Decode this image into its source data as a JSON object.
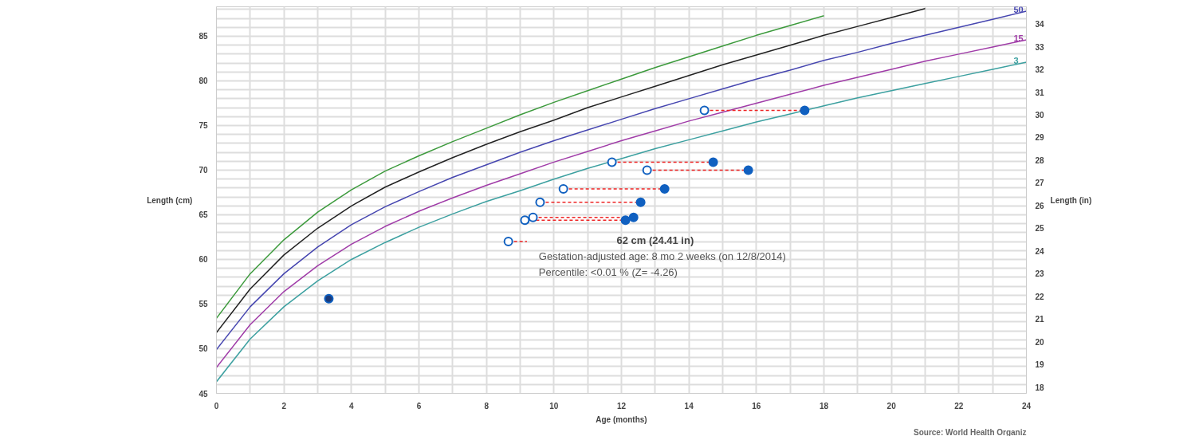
{
  "chart_data": {
    "type": "line",
    "xlabel": "Age (months)",
    "ylabel": "Length (cm)",
    "y2label": "Length (in)",
    "xlim": [
      0,
      24
    ],
    "ylim": [
      45,
      88.3
    ],
    "y2lim": [
      17.72,
      34.76
    ],
    "xticks": [
      0,
      2,
      4,
      6,
      8,
      10,
      12,
      14,
      16,
      18,
      20,
      22,
      24
    ],
    "yticks": [
      45,
      50,
      55,
      60,
      65,
      70,
      75,
      80,
      85
    ],
    "y2ticks": [
      18,
      19,
      20,
      21,
      22,
      23,
      24,
      25,
      26,
      27,
      28,
      29,
      30,
      31,
      32,
      33,
      34
    ],
    "grid": true,
    "line_style": "solid",
    "x": [
      0,
      1,
      2,
      3,
      4,
      5,
      6,
      7,
      8,
      9,
      10,
      11,
      12,
      13,
      14,
      15,
      16,
      17,
      18,
      19,
      20,
      21,
      22,
      23,
      24
    ],
    "series": [
      {
        "color": "#3c9a3c",
        "values": [
          53.4,
          58.4,
          62.2,
          65.3,
          67.8,
          69.9,
          71.6,
          73.2,
          74.7,
          76.2,
          77.6,
          78.9,
          80.2,
          81.5,
          82.7,
          83.9,
          85.1,
          86.2,
          87.3,
          null,
          null,
          null,
          null,
          null,
          null
        ]
      },
      {
        "color": "#222222",
        "values": [
          51.8,
          56.7,
          60.5,
          63.5,
          66.0,
          68.1,
          69.8,
          71.4,
          72.9,
          74.3,
          75.6,
          77.0,
          78.2,
          79.4,
          80.6,
          81.8,
          82.9,
          84.0,
          85.1,
          86.1,
          87.1,
          88.1,
          null,
          null,
          null
        ]
      },
      {
        "name": "50",
        "color": "#4646b0",
        "values": [
          49.9,
          54.7,
          58.4,
          61.4,
          63.9,
          65.9,
          67.6,
          69.2,
          70.6,
          72.0,
          73.3,
          74.5,
          75.7,
          76.9,
          78.0,
          79.1,
          80.2,
          81.2,
          82.3,
          83.2,
          84.2,
          85.1,
          86.0,
          86.9,
          87.8
        ]
      },
      {
        "name": "15",
        "color": "#a03ca8",
        "values": [
          47.9,
          52.7,
          56.4,
          59.3,
          61.7,
          63.7,
          65.4,
          66.9,
          68.3,
          69.6,
          70.9,
          72.1,
          73.3,
          74.4,
          75.5,
          76.5,
          77.5,
          78.5,
          79.5,
          80.4,
          81.3,
          82.2,
          83.0,
          83.8,
          84.6
        ]
      },
      {
        "name": "3",
        "color": "#3ca0a0",
        "values": [
          46.3,
          51.1,
          54.7,
          57.6,
          60.0,
          61.9,
          63.6,
          65.1,
          66.5,
          67.7,
          69.0,
          70.2,
          71.3,
          72.4,
          73.4,
          74.4,
          75.4,
          76.3,
          77.2,
          78.1,
          78.9,
          79.7,
          80.5,
          81.3,
          82.1
        ]
      },
      {
        "type": "line",
        "line_style": "dashed",
        "marker": "none",
        "color": "#ee2222",
        "x": [
          9.14,
          12.12,
          null,
          9.38,
          12.36,
          null,
          9.59,
          12.57,
          null,
          10.28,
          13.28,
          null,
          11.72,
          14.72,
          null,
          12.76,
          15.76,
          null,
          14.46,
          17.43,
          null,
          8.65,
          9.2
        ],
        "values": [
          64.4,
          64.4,
          null,
          64.7,
          64.7,
          null,
          66.4,
          66.4,
          null,
          67.9,
          67.9,
          null,
          70.9,
          70.9,
          null,
          70.0,
          70.0,
          null,
          76.7,
          76.7,
          null,
          62.0,
          62.0
        ]
      },
      {
        "type": "scatter",
        "marker": "circle",
        "color": "#1060c0",
        "x": [
          12.12,
          12.36,
          12.57,
          13.28,
          14.72,
          15.76,
          17.43
        ],
        "values": [
          64.4,
          64.7,
          66.4,
          67.9,
          70.9,
          70.0,
          76.7
        ]
      },
      {
        "type": "scatter",
        "marker": "circle",
        "color": "#ffffff",
        "x": [
          8.65,
          9.14,
          9.38,
          9.59,
          10.28,
          11.72,
          12.76,
          14.46
        ],
        "values": [
          62.0,
          64.4,
          64.7,
          66.4,
          67.9,
          70.9,
          70.0,
          76.7
        ]
      },
      {
        "type": "scatter",
        "marker": "circle",
        "color": "#1a3a7a",
        "x": [
          3.33
        ],
        "values": [
          55.6
        ]
      }
    ],
    "annotations": [
      "62 cm (24.41 in)",
      "Gestation-adjusted age: 8 mo 2 weeks (on 12/8/2014)",
      "Percentile:  <0.01 % (Z= -4.26)",
      "Source: World Health Organiz"
    ]
  }
}
